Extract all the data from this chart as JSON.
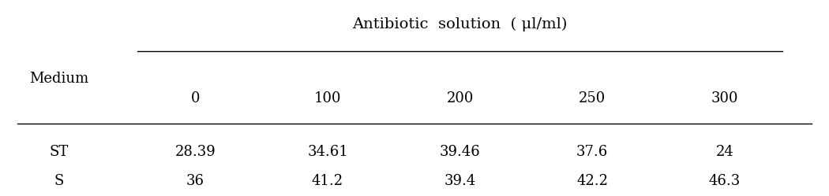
{
  "title": "Antibiotic  solution  ( μl/ml)",
  "col_header_label": "Medium",
  "col_doses": [
    "0",
    "100",
    "200",
    "250",
    "300"
  ],
  "rows": [
    {
      "medium": "ST",
      "values": [
        "28.39",
        "34.61",
        "39.46",
        "37.6",
        "24"
      ]
    },
    {
      "medium": "S",
      "values": [
        "36",
        "41.2",
        "39.4",
        "42.2",
        "46.3"
      ]
    }
  ],
  "bg_color": "#ffffff",
  "text_color": "#000000",
  "font_size": 13,
  "figsize": [
    10.5,
    2.49
  ],
  "dpi": 100
}
